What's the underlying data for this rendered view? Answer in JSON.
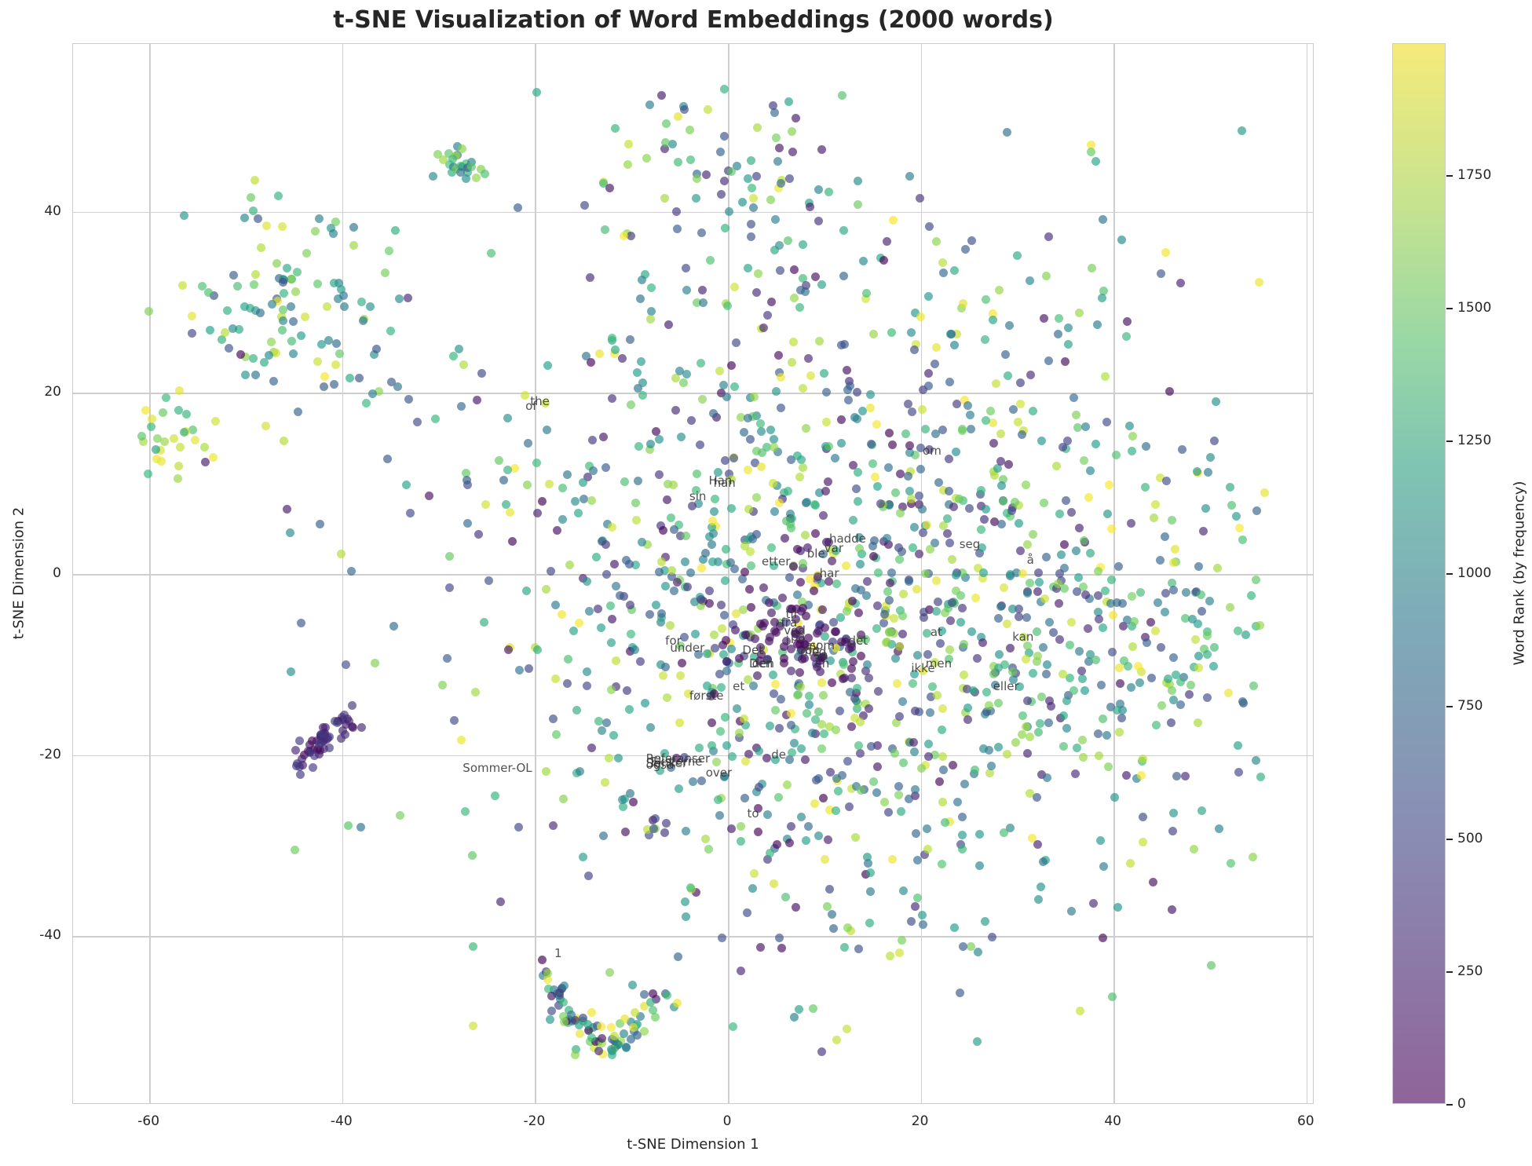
{
  "chart_data": {
    "type": "scatter",
    "title": "t-SNE Visualization of Word Embeddings (2000 words)",
    "xlabel": "t-SNE Dimension 1",
    "ylabel": "t-SNE Dimension 2",
    "xlim": [
      -68,
      61
    ],
    "ylim": [
      -58,
      58
    ],
    "xticks": [
      -60,
      -40,
      -20,
      0,
      20,
      40,
      60
    ],
    "yticks": [
      -40,
      -20,
      0,
      20,
      40
    ],
    "grid": true,
    "n_points": 2000,
    "colorbar": {
      "label": "Word Rank (by frequency)",
      "colormap": "viridis",
      "alpha": 0.6,
      "range": [
        0,
        1999
      ],
      "ticks": [
        0,
        250,
        500,
        750,
        1000,
        1250,
        1500,
        1750
      ]
    },
    "annotations": [
      {
        "text": "han",
        "x": -1.5,
        "y": 10.0
      },
      {
        "text": "Han",
        "x": -2.0,
        "y": 10.2
      },
      {
        "text": "sin",
        "x": -4.0,
        "y": 8.5
      },
      {
        "text": "hadde",
        "x": 10.5,
        "y": 3.8
      },
      {
        "text": "var",
        "x": 10.0,
        "y": 2.8
      },
      {
        "text": "ble",
        "x": 8.2,
        "y": 2.2
      },
      {
        "text": "etter",
        "x": 3.5,
        "y": 1.3
      },
      {
        "text": "har",
        "x": 9.5,
        "y": 0.0
      },
      {
        "text": "om",
        "x": 20.2,
        "y": 13.5
      },
      {
        "text": "seg",
        "x": 24.0,
        "y": 3.2
      },
      {
        "text": "å",
        "x": 31.0,
        "y": 1.5
      },
      {
        "text": "til",
        "x": 6.0,
        "y": -4.5
      },
      {
        "text": "fra",
        "x": 5.5,
        "y": -5.5
      },
      {
        "text": "ved",
        "x": 5.8,
        "y": -6.3
      },
      {
        "text": "på",
        "x": 6.5,
        "y": -7.0
      },
      {
        "text": "i",
        "x": 6.0,
        "y": -7.5
      },
      {
        "text": "som",
        "x": 8.5,
        "y": -8.0
      },
      {
        "text": "og",
        "x": 8.0,
        "y": -8.5
      },
      {
        "text": "med",
        "x": 7.5,
        "y": -8.7
      },
      {
        "text": "av",
        "x": 8.0,
        "y": -8.0
      },
      {
        "text": "sa",
        "x": 9.0,
        "y": -9.0
      },
      {
        "text": "en",
        "x": 9.0,
        "y": -10.0
      },
      {
        "text": "det",
        "x": 12.5,
        "y": -7.5
      },
      {
        "text": "Det",
        "x": 1.5,
        "y": -8.5
      },
      {
        "text": "Den",
        "x": 2.2,
        "y": -10.0
      },
      {
        "text": "den",
        "x": 2.5,
        "y": -10.0
      },
      {
        "text": "for",
        "x": -6.5,
        "y": -7.5
      },
      {
        "text": "under",
        "x": -6.0,
        "y": -8.2
      },
      {
        "text": "et",
        "x": 0.5,
        "y": -12.5
      },
      {
        "text": "første",
        "x": -4.0,
        "y": -13.5
      },
      {
        "text": "at",
        "x": 21.0,
        "y": -6.5
      },
      {
        "text": "kan",
        "x": 29.5,
        "y": -7.0
      },
      {
        "text": "ikke",
        "x": 19.0,
        "y": -10.5
      },
      {
        "text": "men",
        "x": 20.5,
        "y": -10.0
      },
      {
        "text": "eller",
        "x": 27.5,
        "y": -12.5
      },
      {
        "text": "the",
        "x": -20.5,
        "y": 19.0
      },
      {
        "text": "of",
        "x": -21.0,
        "y": 18.5
      },
      {
        "text": "Sommer-OL",
        "x": -27.5,
        "y": -21.5
      },
      {
        "text": "Referanser",
        "x": -8.5,
        "y": -20.5
      },
      {
        "text": "Eksterne",
        "x": -8.0,
        "y": -20.8
      },
      {
        "text": "lenker",
        "x": -8.0,
        "y": -21.0
      },
      {
        "text": "Se",
        "x": -8.5,
        "y": -21.0
      },
      {
        "text": "også",
        "x": -8.5,
        "y": -21.2
      },
      {
        "text": "over",
        "x": -2.3,
        "y": -22.0
      },
      {
        "text": "de",
        "x": 4.5,
        "y": -20.0
      },
      {
        "text": "to",
        "x": 2.0,
        "y": -26.5
      },
      {
        "text": "1",
        "x": -18.0,
        "y": -42.0
      }
    ],
    "clusters": [
      {
        "name": "far-left cluster",
        "cx": -59,
        "cy": 15.5,
        "n": 30,
        "spread": 2.5,
        "rank_range": [
          1100,
          1990
        ]
      },
      {
        "name": "upper-left cluster",
        "cx": -45,
        "cy": 29,
        "n": 110,
        "spread": 6.5,
        "rank_range": [
          400,
          1990
        ]
      },
      {
        "name": "upper-left small knot",
        "cx": -28,
        "cy": 44.5,
        "n": 25,
        "spread": 1.3,
        "rank_range": [
          600,
          1700
        ]
      },
      {
        "name": "left purple arc",
        "cx": -42,
        "cy": -18,
        "n": 55,
        "spread": 2.5,
        "rank_range": [
          0,
          400
        ]
      },
      {
        "name": "bottom arc",
        "cx": -14,
        "cy": -49,
        "n": 90,
        "spread": 4,
        "rank_range": [
          0,
          1990
        ]
      },
      {
        "name": "top cluster",
        "cx": 0,
        "cy": 44,
        "n": 80,
        "spread": 7,
        "rank_range": [
          100,
          1990
        ]
      },
      {
        "name": "central cloud",
        "cx": 10,
        "cy": -2,
        "n": 1300,
        "spread": 20,
        "rank_range": [
          0,
          1999
        ]
      },
      {
        "name": "central core (frequent words)",
        "cx": 7,
        "cy": -7,
        "n": 80,
        "spread": 3.5,
        "rank_range": [
          0,
          150
        ]
      },
      {
        "name": "right cloud",
        "cx": 42,
        "cy": -10,
        "n": 150,
        "spread": 9,
        "rank_range": [
          200,
          1999
        ]
      }
    ]
  }
}
